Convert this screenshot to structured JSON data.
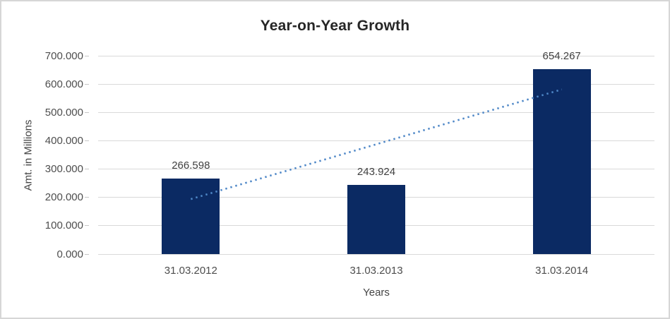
{
  "chart_data": {
    "type": "bar",
    "title": "Year-on-Year Growth",
    "xlabel": "Years",
    "ylabel": "Amt. in Millions",
    "categories": [
      "31.03.2012",
      "31.03.2013",
      "31.03.2014"
    ],
    "values": [
      266.598,
      243.924,
      654.267
    ],
    "value_labels": [
      "266.598",
      "243.924",
      "654.267"
    ],
    "y_tick_values": [
      0,
      100,
      200,
      300,
      400,
      500,
      600,
      700
    ],
    "y_tick_labels": [
      "0.000",
      "100.000",
      "200.000",
      "300.000",
      "400.000",
      "500.000",
      "600.000",
      "700.000"
    ],
    "ylim": [
      0,
      700
    ],
    "grid": true,
    "legend": false,
    "bar_color": "#0b2a63",
    "trendline": {
      "type": "linear",
      "style": "dotted",
      "color": "#4e87c7",
      "start_value": 194.4,
      "end_value": 582.1
    },
    "colors": {
      "gridline": "#d9d9d9",
      "title_text": "#262626",
      "axis_text": "#4d4d4d",
      "data_label_text": "#404040",
      "border": "#d6d6d6",
      "background": "#ffffff"
    }
  }
}
